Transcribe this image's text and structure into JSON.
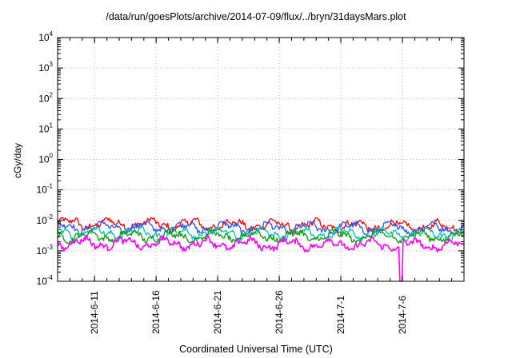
{
  "chart_data": {
    "type": "line",
    "title": "/data/run/goesPlots/archive/2014-07-09/flux/../bryn/31daysMars.plot",
    "xlabel": "Coordinated Universal Time (UTC)",
    "ylabel": "cGy/day",
    "yscale": "log",
    "ylim": [
      0.0001,
      10000
    ],
    "xlim": [
      "2014-06-08",
      "2014-07-11"
    ],
    "x_ticks": [
      "2014-6-11",
      "2014-6-16",
      "2014-6-21",
      "2014-6-26",
      "2014-7-1",
      "2014-7-6"
    ],
    "y_ticks": [
      {
        "base": "10",
        "exp": "-4"
      },
      {
        "base": "10",
        "exp": "-3"
      },
      {
        "base": "10",
        "exp": "-2"
      },
      {
        "base": "10",
        "exp": "-1"
      },
      {
        "base": "10",
        "exp": "0"
      },
      {
        "base": "10",
        "exp": "1"
      },
      {
        "base": "10",
        "exp": "2"
      },
      {
        "base": "10",
        "exp": "3"
      },
      {
        "base": "10",
        "exp": "4"
      }
    ],
    "grid": true,
    "series": [
      {
        "color": "#ff0000",
        "y_start": 0.008,
        "y_end": 0.006,
        "y_min": 0.004,
        "y_max": 0.012
      },
      {
        "color": "#2a52ff",
        "y_start": 0.006,
        "y_end": 0.0055,
        "y_min": 0.0035,
        "y_max": 0.009
      },
      {
        "color": "#00c0c0",
        "y_start": 0.004,
        "y_end": 0.0035,
        "y_min": 0.002,
        "y_max": 0.006
      },
      {
        "color": "#00a000",
        "y_start": 0.003,
        "y_end": 0.003,
        "y_min": 0.0018,
        "y_max": 0.005
      },
      {
        "color": "#ff00ff",
        "y_start": 0.0018,
        "y_end": 0.0015,
        "y_min": 0.0001,
        "y_max": 0.004
      }
    ]
  }
}
